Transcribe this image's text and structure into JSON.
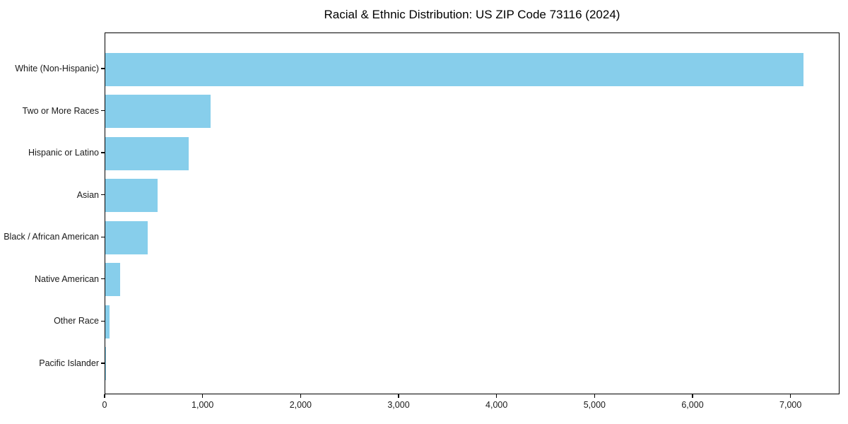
{
  "figure": {
    "background": "#ffffff"
  },
  "chart_data": {
    "type": "bar",
    "orientation": "horizontal",
    "title": "Racial & Ethnic Distribution: US ZIP Code 73116 (2024)",
    "categories": [
      "White (Non-Hispanic)",
      "Two or More Races",
      "Hispanic or Latino",
      "Asian",
      "Black / African American",
      "Native American",
      "Other Race",
      "Pacific Islander"
    ],
    "values": [
      7140,
      1075,
      855,
      535,
      435,
      150,
      40,
      8
    ],
    "xlabel": "",
    "ylabel": "",
    "xlim": [
      0,
      7500
    ],
    "xticks": [
      0,
      1000,
      2000,
      3000,
      4000,
      5000,
      6000,
      7000
    ],
    "xtick_labels": [
      "0",
      "1,000",
      "2,000",
      "3,000",
      "4,000",
      "5,000",
      "6,000",
      "7,000"
    ],
    "bar_color": "#87CEEB",
    "axis_color": "#000000",
    "text_color": "#1a1a1a",
    "grid": false,
    "legend_position": "none"
  }
}
